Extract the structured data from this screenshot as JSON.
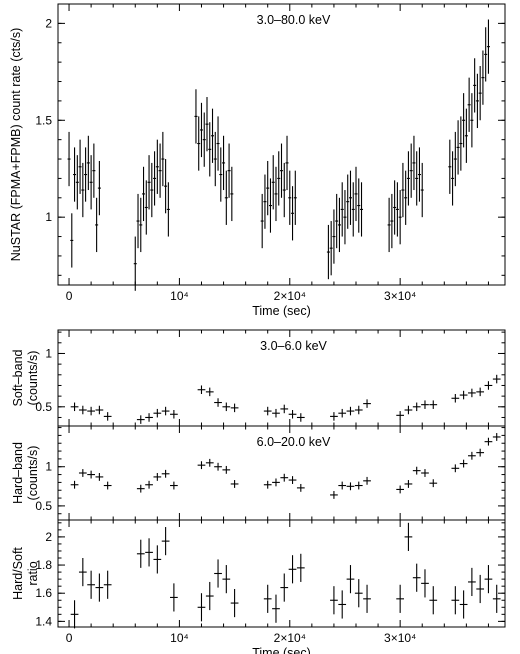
{
  "chart_data": [
    {
      "type": "scatter",
      "band_label": "3.0–80.0 keV",
      "ylabel": "NuSTAR (FPMA+FPMB) count rate (cts/s)",
      "xlabel": "Time (sec)",
      "xlim": [
        -1000,
        39500
      ],
      "ylim": [
        0.65,
        2.1
      ],
      "xticks": [
        {
          "v": 0,
          "label": "0"
        },
        {
          "v": 10000,
          "label": "10⁴"
        },
        {
          "v": 20000,
          "label": "2×10⁴"
        },
        {
          "v": 30000,
          "label": "3×10⁴"
        }
      ],
      "yticks": [
        {
          "v": 1,
          "label": "1"
        },
        {
          "v": 1.5,
          "label": "1.5"
        },
        {
          "v": 2,
          "label": "2"
        }
      ],
      "x": [
        0,
        250,
        500,
        750,
        1000,
        1250,
        1500,
        1750,
        2000,
        2250,
        2500,
        2750,
        6000,
        6250,
        6500,
        6750,
        7000,
        7250,
        7500,
        7750,
        8000,
        8250,
        8500,
        8750,
        9000,
        11500,
        11750,
        12000,
        12250,
        12500,
        12750,
        13000,
        13250,
        13500,
        13750,
        14000,
        14250,
        14500,
        14750,
        17500,
        17750,
        18000,
        18250,
        18500,
        18750,
        19000,
        19250,
        19500,
        19750,
        20000,
        20250,
        20500,
        23500,
        23750,
        24000,
        24250,
        24500,
        24750,
        25000,
        25250,
        25500,
        25750,
        26000,
        26250,
        26500,
        29000,
        29250,
        29500,
        29750,
        30000,
        30250,
        30500,
        30750,
        31000,
        31250,
        31500,
        31750,
        32000,
        34500,
        34750,
        35000,
        35250,
        35500,
        35750,
        36000,
        36250,
        36500,
        36750,
        37000,
        37250,
        37500,
        37750,
        38000
      ],
      "y": [
        1.3,
        0.88,
        1.22,
        1.18,
        1.26,
        1.14,
        1.22,
        1.28,
        1.18,
        1.24,
        0.96,
        1.15,
        0.76,
        0.98,
        0.96,
        1.12,
        1.05,
        1.18,
        1.14,
        1.2,
        1.26,
        1.24,
        1.3,
        1.16,
        1.04,
        1.52,
        1.38,
        1.45,
        1.4,
        1.48,
        1.35,
        1.42,
        1.3,
        1.38,
        1.22,
        1.28,
        1.1,
        1.24,
        1.12,
        0.98,
        1.08,
        1.15,
        1.06,
        1.18,
        1.12,
        1.2,
        1.24,
        1.14,
        1.28,
        1.1,
        1.02,
        1.1,
        0.82,
        0.84,
        0.9,
        0.98,
        0.96,
        1.04,
        1.0,
        1.08,
        1.1,
        1.04,
        1.12,
        1.06,
        1.04,
        0.96,
        0.98,
        1.05,
        1.04,
        1.0,
        1.14,
        1.1,
        1.2,
        1.24,
        1.28,
        1.2,
        1.22,
        1.14,
        1.26,
        1.2,
        1.3,
        1.36,
        1.38,
        1.5,
        1.42,
        1.58,
        1.5,
        1.68,
        1.6,
        1.64,
        1.72,
        1.84,
        1.88
      ],
      "yerr": 0.14
    },
    {
      "type": "scatter",
      "band_label": "3.0–6.0 keV",
      "ylabel": [
        "Soft–band",
        "(counts/s)"
      ],
      "ylim": [
        0.32,
        1.22
      ],
      "yticks": [
        {
          "v": 0.5,
          "label": "0.5"
        },
        {
          "v": 1,
          "label": "1"
        }
      ],
      "x": [
        500,
        1250,
        2000,
        2750,
        3500,
        6500,
        7250,
        8000,
        8750,
        9500,
        12000,
        12750,
        13500,
        14250,
        15000,
        18000,
        18750,
        19500,
        20250,
        21000,
        24000,
        24750,
        25500,
        26250,
        27000,
        30000,
        30750,
        31500,
        32250,
        33000,
        35000,
        35750,
        36500,
        37250,
        38000,
        38750
      ],
      "y": [
        0.5,
        0.47,
        0.46,
        0.47,
        0.41,
        0.38,
        0.4,
        0.44,
        0.46,
        0.43,
        0.66,
        0.64,
        0.54,
        0.5,
        0.49,
        0.46,
        0.44,
        0.48,
        0.43,
        0.4,
        0.41,
        0.44,
        0.46,
        0.47,
        0.53,
        0.42,
        0.47,
        0.5,
        0.52,
        0.52,
        0.58,
        0.61,
        0.63,
        0.64,
        0.7,
        0.76
      ],
      "yerr": 0.04,
      "xerr": 350
    },
    {
      "type": "scatter",
      "band_label": "6.0–20.0 keV",
      "ylabel": [
        "Hard–band",
        "(counts/s)"
      ],
      "ylim": [
        0.32,
        1.52
      ],
      "yticks": [
        {
          "v": 0.5,
          "label": "0.5"
        },
        {
          "v": 1,
          "label": "1"
        }
      ],
      "x": [
        500,
        1250,
        2000,
        2750,
        3500,
        6500,
        7250,
        8000,
        8750,
        9500,
        12000,
        12750,
        13500,
        14250,
        15000,
        18000,
        18750,
        19500,
        20250,
        21000,
        24000,
        24750,
        25500,
        26250,
        27000,
        30000,
        30750,
        31500,
        32250,
        33000,
        35000,
        35750,
        36500,
        37250,
        38000,
        38750
      ],
      "y": [
        0.77,
        0.92,
        0.9,
        0.87,
        0.76,
        0.72,
        0.77,
        0.87,
        0.91,
        0.76,
        1.02,
        1.05,
        1.0,
        0.96,
        0.78,
        0.77,
        0.8,
        0.86,
        0.83,
        0.73,
        0.64,
        0.76,
        0.75,
        0.76,
        0.82,
        0.71,
        0.78,
        0.95,
        0.92,
        0.79,
        0.98,
        1.04,
        1.14,
        1.18,
        1.32,
        1.38
      ],
      "yerr": 0.05,
      "xerr": 350
    },
    {
      "type": "scatter",
      "ylabel": [
        "Hard/Soft",
        "ratio"
      ],
      "xlabel": "Time (sec)",
      "ylim": [
        1.36,
        2.12
      ],
      "yticks": [
        {
          "v": 1.4,
          "label": "1.4"
        },
        {
          "v": 1.6,
          "label": "1.6"
        },
        {
          "v": 1.8,
          "label": "1.8"
        },
        {
          "v": 2,
          "label": "2"
        }
      ],
      "xticks": [
        {
          "v": 0,
          "label": "0"
        },
        {
          "v": 10000,
          "label": "10⁴"
        },
        {
          "v": 20000,
          "label": "2×10⁴"
        },
        {
          "v": 30000,
          "label": "3×10⁴"
        }
      ],
      "x": [
        500,
        1250,
        2000,
        2750,
        3500,
        6500,
        7250,
        8000,
        8750,
        9500,
        12000,
        12750,
        13500,
        14250,
        15000,
        18000,
        18750,
        19500,
        20250,
        21000,
        24000,
        24750,
        25500,
        26250,
        27000,
        30000,
        30750,
        31500,
        32250,
        33000,
        35000,
        35750,
        36500,
        37250,
        38000,
        38750
      ],
      "y": [
        1.45,
        1.75,
        1.66,
        1.64,
        1.66,
        1.88,
        1.89,
        1.84,
        1.97,
        1.57,
        1.5,
        1.58,
        1.74,
        1.7,
        1.53,
        1.56,
        1.49,
        1.64,
        1.77,
        1.78,
        1.55,
        1.52,
        1.7,
        1.6,
        1.56,
        1.56,
        2.0,
        1.71,
        1.67,
        1.55,
        1.55,
        1.52,
        1.68,
        1.63,
        1.7,
        1.56
      ],
      "yerr": 0.1,
      "xerr": 350
    }
  ]
}
